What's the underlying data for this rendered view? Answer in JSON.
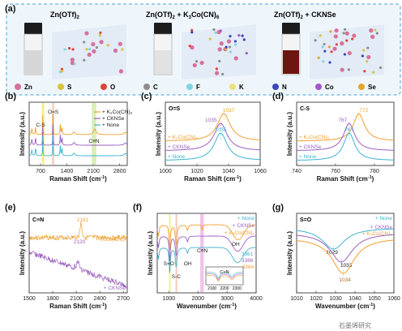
{
  "panel_a": {
    "letter": "(a)",
    "titles": [
      "Zn(OTf)",
      "Zn(OTf)",
      "Zn(OTf)"
    ],
    "title_subs": [
      "2",
      "2",
      "2"
    ],
    "title_suffix": [
      "",
      " + K",
      " + CKNSe"
    ],
    "title_mid": [
      "",
      "3",
      ""
    ],
    "title_tail": [
      "",
      "Co(CN)",
      ""
    ],
    "title_tail_sub": [
      "",
      "6",
      ""
    ],
    "vial_colors": [
      "#d6d6d6",
      "#e2e2e2",
      "#6b1610"
    ],
    "legend": [
      {
        "label": "Zn",
        "color": "#d8709a"
      },
      {
        "label": "S",
        "color": "#d8c43c"
      },
      {
        "label": "O",
        "color": "#d9463a"
      },
      {
        "label": "C",
        "color": "#8d8d8d"
      },
      {
        "label": "F",
        "color": "#7fd6e2"
      },
      {
        "label": "K",
        "color": "#ede27a"
      },
      {
        "label": "N",
        "color": "#3a47b8"
      },
      {
        "label": "Co",
        "color": "#a457c9"
      },
      {
        "label": "Se",
        "color": "#e2a534"
      }
    ]
  },
  "colors": {
    "orange": "#f0a030",
    "purple": "#9b5fc0",
    "cyan": "#3fb3d0"
  },
  "chart_data": [
    {
      "id": "b",
      "letter": "(b)",
      "type": "line",
      "xlabel": "Raman Shift (cm",
      "xlabel_sup": "-1",
      "xlabel_end": ")",
      "ylabel": "Intensity (a.u.)",
      "xlim": [
        400,
        3000
      ],
      "xticks": [
        "700",
        "1400",
        "2100",
        "2800"
      ],
      "xtick_values": [
        700,
        1400,
        2100,
        2800
      ],
      "legend": [
        "+ K₃Co(CN)₆",
        "+ CKNSe",
        "+ None"
      ],
      "annotations": [
        "C-S",
        "O=S",
        "C≡N"
      ],
      "bands": [
        {
          "label": "C-S",
          "x": [
            735,
            800
          ],
          "color": "#f2e75a"
        },
        {
          "label": "O=S",
          "x": [
            1010,
            1060
          ],
          "color": "#f0b090"
        },
        {
          "label": "C≡N",
          "x": [
            2060,
            2180
          ],
          "color": "#c8e89a"
        }
      ],
      "series": [
        {
          "name": "+ K₃Co(CN)₆",
          "color": "orange",
          "offset": 2.0
        },
        {
          "name": "+ CKNSe",
          "color": "purple",
          "offset": 1.0
        },
        {
          "name": "+ None",
          "color": "cyan",
          "offset": 0.0
        }
      ]
    },
    {
      "id": "c",
      "letter": "(c)",
      "type": "line",
      "title": "O=S",
      "xlabel": "Raman Shift (cm",
      "xlabel_sup": "-1",
      "xlabel_end": ")",
      "ylabel": "Intensity (a.u.)",
      "xlim": [
        1000,
        1060
      ],
      "xticks": [
        "1000",
        "1020",
        "1040",
        "1060"
      ],
      "xtick_values": [
        1000,
        1020,
        1040,
        1060
      ],
      "series": [
        {
          "name": "+ K₃Co(CN)₆",
          "color": "orange",
          "peak": 1037,
          "peak_label": "1037",
          "offset": 2.0
        },
        {
          "name": "+ CKNSe",
          "color": "purple",
          "peak": 1035,
          "peak_label": "1035",
          "offset": 1.0
        },
        {
          "name": "+ None",
          "color": "cyan",
          "peak": 1035,
          "peak_label": "1035",
          "offset": 0.0
        }
      ]
    },
    {
      "id": "d",
      "letter": "(d)",
      "type": "line",
      "title": "C-S",
      "xlabel": "Raman Shift (cm",
      "xlabel_sup": "-1",
      "xlabel_end": ")",
      "ylabel": "Intensity (a.u.)",
      "xlim": [
        740,
        790
      ],
      "xticks": [
        "740",
        "760",
        "780"
      ],
      "xtick_values": [
        740,
        760,
        780
      ],
      "series": [
        {
          "name": "+ K₃Co(CN)₆",
          "color": "orange",
          "peak": 772,
          "peak_label": "772",
          "offset": 2.0
        },
        {
          "name": "+ CKNSe",
          "color": "purple",
          "peak": 767,
          "peak_label": "767",
          "offset": 1.0
        },
        {
          "name": "+ None",
          "color": "cyan",
          "peak": 767,
          "peak_label": "767",
          "offset": 0.0
        }
      ]
    },
    {
      "id": "e",
      "letter": "(e)",
      "type": "line",
      "title": "C≡N",
      "xlabel": "Raman Shift (cm",
      "xlabel_sup": "-1",
      "xlabel_end": ")",
      "ylabel": "Intensity (a.u.)",
      "xlim": [
        1500,
        2750
      ],
      "xticks": [
        "1500",
        "1800",
        "2100",
        "2400",
        "2700"
      ],
      "xtick_values": [
        1500,
        1800,
        2100,
        2400,
        2700
      ],
      "series": [
        {
          "name": "+ K₃Co(CN)₆",
          "color": "orange",
          "peak": 2161,
          "peak_label": "2161"
        },
        {
          "name": "+ CKNSe",
          "color": "purple",
          "peak": 2120,
          "peak_label": "2120"
        }
      ]
    },
    {
      "id": "f",
      "letter": "(f)",
      "type": "line",
      "xlabel": "Wavenumber (cm",
      "xlabel_sup": "-1",
      "xlabel_end": ")",
      "ylabel": "Intensity (a.u.)",
      "xlim": [
        600,
        4000
      ],
      "xticks": [
        "1000",
        "2000",
        "3000",
        "4000"
      ],
      "xtick_values": [
        1000,
        2000,
        3000,
        4000
      ],
      "annotations": [
        "S=O",
        "S-C",
        "OH",
        "C≡N",
        "OH"
      ],
      "peak_labels": [
        "3361",
        "3366",
        "3384"
      ],
      "legend": [
        "+ None",
        "+ CKNSe",
        "+ K₃Co(CN)₆"
      ],
      "inset": {
        "label": "C≡N",
        "xticks": [
          "2100",
          "2200",
          "2300"
        ],
        "xtick_values": [
          2100,
          2200,
          2300
        ]
      },
      "series": [
        {
          "name": "+ None",
          "color": "cyan",
          "offset": 2.0,
          "oh_peak": 3361
        },
        {
          "name": "+ CKNSe",
          "color": "purple",
          "offset": 1.0,
          "oh_peak": 3366
        },
        {
          "name": "+ K₃Co(CN)₆",
          "color": "orange",
          "offset": 0.0,
          "oh_peak": 3384
        }
      ]
    },
    {
      "id": "g",
      "letter": "(g)",
      "type": "line",
      "title": "S=O",
      "xlabel": "Wavenumber (cm",
      "xlabel_sup": "-1",
      "xlabel_end": ")",
      "ylabel": "Intensity (a.u.)",
      "xlim": [
        1010,
        1060
      ],
      "xticks": [
        "1010",
        "1020",
        "1030",
        "1040",
        "1050",
        "1060"
      ],
      "xtick_values": [
        1010,
        1020,
        1030,
        1040,
        1050,
        1060
      ],
      "series": [
        {
          "name": "+ None",
          "color": "cyan",
          "trough": 1029,
          "trough_label": "1029"
        },
        {
          "name": "+ CKNSe",
          "color": "purple",
          "trough": 1033,
          "trough_label": "1033"
        },
        {
          "name": "+ K₃Co(CN)₆",
          "color": "orange",
          "trough": 1034,
          "trough_label": "1034"
        }
      ]
    }
  ],
  "watermark": "石墨烯研究"
}
